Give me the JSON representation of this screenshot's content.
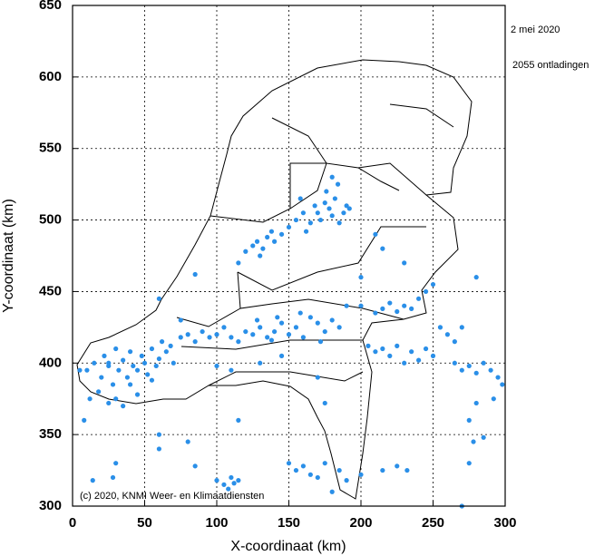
{
  "chart_data": {
    "type": "scatter",
    "date_label": "2 mei 2020",
    "count_label": "2055 ontladingen",
    "credit": "(c) 2020, KNMI Weer- en Klimaatdiensten",
    "xlabel": "X-coordinaat (km)",
    "ylabel": "Y-coordinaat (km)",
    "color": "#2a8fe8",
    "xlim": [
      0,
      300
    ],
    "ylim": [
      300,
      650
    ],
    "xticks": [
      0,
      50,
      100,
      150,
      200,
      250,
      300
    ],
    "yticks": [
      300,
      350,
      400,
      450,
      500,
      550,
      600,
      650
    ],
    "grid": true,
    "x": [
      10,
      15,
      20,
      22,
      25,
      28,
      30,
      32,
      35,
      38,
      40,
      42,
      45,
      48,
      50,
      52,
      55,
      58,
      60,
      62,
      65,
      68,
      70,
      30,
      35,
      45,
      25,
      55,
      18,
      40,
      8,
      5,
      12,
      75,
      80,
      85,
      90,
      95,
      100,
      105,
      110,
      120,
      125,
      130,
      135,
      140,
      145,
      150,
      155,
      160,
      165,
      170,
      175,
      180,
      185,
      115,
      128,
      138,
      142,
      158,
      172,
      150,
      155,
      160,
      165,
      168,
      170,
      172,
      175,
      178,
      180,
      182,
      185,
      188,
      190,
      145,
      140,
      162,
      176,
      184,
      180,
      192,
      158,
      120,
      125,
      128,
      132,
      135,
      130,
      138,
      115,
      200,
      210,
      215,
      220,
      225,
      230,
      235,
      240,
      245,
      205,
      210,
      215,
      220,
      225,
      230,
      235,
      240,
      245,
      250,
      255,
      260,
      265,
      270,
      265,
      270,
      275,
      280,
      285,
      290,
      295,
      298,
      292,
      280,
      275,
      285,
      278,
      275,
      100,
      105,
      108,
      110,
      112,
      115,
      150,
      155,
      160,
      165,
      170,
      175,
      180,
      185,
      190,
      200,
      215,
      225,
      232,
      85,
      30,
      28,
      14,
      60,
      80,
      25,
      100,
      110,
      60,
      115,
      130,
      145,
      170,
      190,
      200,
      215,
      230,
      250,
      280,
      270,
      175,
      210,
      85,
      60,
      75
    ],
    "values": [
      395,
      400,
      390,
      405,
      398,
      385,
      410,
      395,
      402,
      390,
      408,
      398,
      395,
      405,
      400,
      392,
      410,
      398,
      403,
      415,
      408,
      412,
      400,
      375,
      370,
      378,
      372,
      388,
      380,
      385,
      360,
      395,
      375,
      418,
      420,
      415,
      422,
      418,
      420,
      425,
      418,
      422,
      420,
      425,
      418,
      422,
      428,
      420,
      425,
      418,
      432,
      428,
      422,
      430,
      425,
      415,
      430,
      416,
      432,
      435,
      415,
      495,
      500,
      505,
      498,
      510,
      505,
      500,
      512,
      508,
      503,
      515,
      498,
      505,
      510,
      490,
      485,
      492,
      520,
      525,
      530,
      508,
      515,
      478,
      482,
      485,
      480,
      488,
      475,
      492,
      470,
      440,
      435,
      438,
      442,
      436,
      440,
      438,
      445,
      450,
      412,
      408,
      410,
      405,
      412,
      400,
      408,
      402,
      410,
      405,
      425,
      420,
      415,
      425,
      400,
      395,
      398,
      393,
      400,
      395,
      390,
      385,
      375,
      372,
      360,
      348,
      345,
      330,
      318,
      315,
      312,
      320,
      316,
      318,
      330,
      325,
      328,
      322,
      320,
      330,
      310,
      325,
      318,
      322,
      325,
      328,
      325,
      328,
      330,
      320,
      318,
      350,
      345,
      400,
      398,
      395,
      340,
      360,
      400,
      405,
      390,
      440,
      460,
      480,
      470,
      455,
      460,
      300,
      372,
      490,
      462,
      445,
      430
    ]
  }
}
